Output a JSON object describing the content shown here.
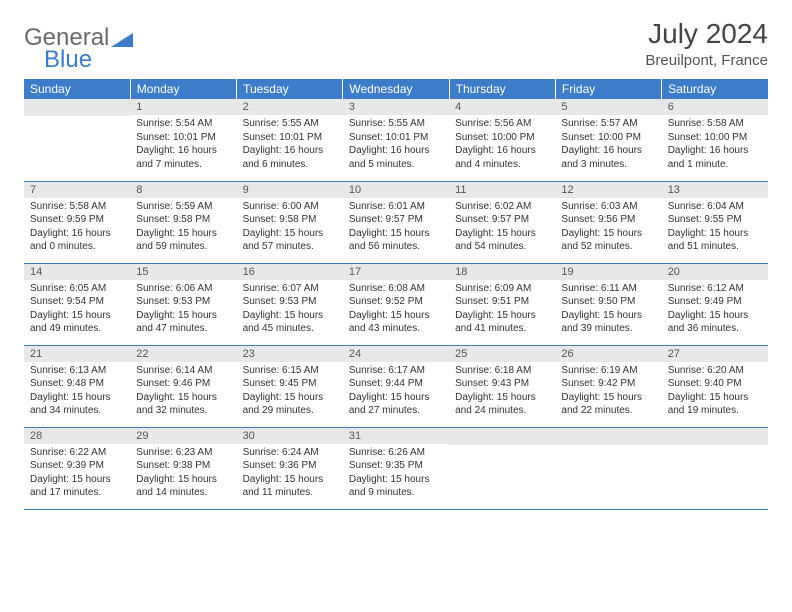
{
  "logo": {
    "part1": "General",
    "part2": "Blue"
  },
  "title": "July 2024",
  "location": "Breuilpont, France",
  "colors": {
    "header_bg": "#3d7cc9",
    "header_fg": "#ffffff",
    "daynum_bg": "#e8e8e8",
    "border": "#3d7cc9",
    "text": "#333333"
  },
  "weekdays": [
    "Sunday",
    "Monday",
    "Tuesday",
    "Wednesday",
    "Thursday",
    "Friday",
    "Saturday"
  ],
  "weeks": [
    [
      {
        "n": "",
        "sr": "",
        "ss": "",
        "dl1": "",
        "dl2": ""
      },
      {
        "n": "1",
        "sr": "Sunrise: 5:54 AM",
        "ss": "Sunset: 10:01 PM",
        "dl1": "Daylight: 16 hours",
        "dl2": "and 7 minutes."
      },
      {
        "n": "2",
        "sr": "Sunrise: 5:55 AM",
        "ss": "Sunset: 10:01 PM",
        "dl1": "Daylight: 16 hours",
        "dl2": "and 6 minutes."
      },
      {
        "n": "3",
        "sr": "Sunrise: 5:55 AM",
        "ss": "Sunset: 10:01 PM",
        "dl1": "Daylight: 16 hours",
        "dl2": "and 5 minutes."
      },
      {
        "n": "4",
        "sr": "Sunrise: 5:56 AM",
        "ss": "Sunset: 10:00 PM",
        "dl1": "Daylight: 16 hours",
        "dl2": "and 4 minutes."
      },
      {
        "n": "5",
        "sr": "Sunrise: 5:57 AM",
        "ss": "Sunset: 10:00 PM",
        "dl1": "Daylight: 16 hours",
        "dl2": "and 3 minutes."
      },
      {
        "n": "6",
        "sr": "Sunrise: 5:58 AM",
        "ss": "Sunset: 10:00 PM",
        "dl1": "Daylight: 16 hours",
        "dl2": "and 1 minute."
      }
    ],
    [
      {
        "n": "7",
        "sr": "Sunrise: 5:58 AM",
        "ss": "Sunset: 9:59 PM",
        "dl1": "Daylight: 16 hours",
        "dl2": "and 0 minutes."
      },
      {
        "n": "8",
        "sr": "Sunrise: 5:59 AM",
        "ss": "Sunset: 9:58 PM",
        "dl1": "Daylight: 15 hours",
        "dl2": "and 59 minutes."
      },
      {
        "n": "9",
        "sr": "Sunrise: 6:00 AM",
        "ss": "Sunset: 9:58 PM",
        "dl1": "Daylight: 15 hours",
        "dl2": "and 57 minutes."
      },
      {
        "n": "10",
        "sr": "Sunrise: 6:01 AM",
        "ss": "Sunset: 9:57 PM",
        "dl1": "Daylight: 15 hours",
        "dl2": "and 56 minutes."
      },
      {
        "n": "11",
        "sr": "Sunrise: 6:02 AM",
        "ss": "Sunset: 9:57 PM",
        "dl1": "Daylight: 15 hours",
        "dl2": "and 54 minutes."
      },
      {
        "n": "12",
        "sr": "Sunrise: 6:03 AM",
        "ss": "Sunset: 9:56 PM",
        "dl1": "Daylight: 15 hours",
        "dl2": "and 52 minutes."
      },
      {
        "n": "13",
        "sr": "Sunrise: 6:04 AM",
        "ss": "Sunset: 9:55 PM",
        "dl1": "Daylight: 15 hours",
        "dl2": "and 51 minutes."
      }
    ],
    [
      {
        "n": "14",
        "sr": "Sunrise: 6:05 AM",
        "ss": "Sunset: 9:54 PM",
        "dl1": "Daylight: 15 hours",
        "dl2": "and 49 minutes."
      },
      {
        "n": "15",
        "sr": "Sunrise: 6:06 AM",
        "ss": "Sunset: 9:53 PM",
        "dl1": "Daylight: 15 hours",
        "dl2": "and 47 minutes."
      },
      {
        "n": "16",
        "sr": "Sunrise: 6:07 AM",
        "ss": "Sunset: 9:53 PM",
        "dl1": "Daylight: 15 hours",
        "dl2": "and 45 minutes."
      },
      {
        "n": "17",
        "sr": "Sunrise: 6:08 AM",
        "ss": "Sunset: 9:52 PM",
        "dl1": "Daylight: 15 hours",
        "dl2": "and 43 minutes."
      },
      {
        "n": "18",
        "sr": "Sunrise: 6:09 AM",
        "ss": "Sunset: 9:51 PM",
        "dl1": "Daylight: 15 hours",
        "dl2": "and 41 minutes."
      },
      {
        "n": "19",
        "sr": "Sunrise: 6:11 AM",
        "ss": "Sunset: 9:50 PM",
        "dl1": "Daylight: 15 hours",
        "dl2": "and 39 minutes."
      },
      {
        "n": "20",
        "sr": "Sunrise: 6:12 AM",
        "ss": "Sunset: 9:49 PM",
        "dl1": "Daylight: 15 hours",
        "dl2": "and 36 minutes."
      }
    ],
    [
      {
        "n": "21",
        "sr": "Sunrise: 6:13 AM",
        "ss": "Sunset: 9:48 PM",
        "dl1": "Daylight: 15 hours",
        "dl2": "and 34 minutes."
      },
      {
        "n": "22",
        "sr": "Sunrise: 6:14 AM",
        "ss": "Sunset: 9:46 PM",
        "dl1": "Daylight: 15 hours",
        "dl2": "and 32 minutes."
      },
      {
        "n": "23",
        "sr": "Sunrise: 6:15 AM",
        "ss": "Sunset: 9:45 PM",
        "dl1": "Daylight: 15 hours",
        "dl2": "and 29 minutes."
      },
      {
        "n": "24",
        "sr": "Sunrise: 6:17 AM",
        "ss": "Sunset: 9:44 PM",
        "dl1": "Daylight: 15 hours",
        "dl2": "and 27 minutes."
      },
      {
        "n": "25",
        "sr": "Sunrise: 6:18 AM",
        "ss": "Sunset: 9:43 PM",
        "dl1": "Daylight: 15 hours",
        "dl2": "and 24 minutes."
      },
      {
        "n": "26",
        "sr": "Sunrise: 6:19 AM",
        "ss": "Sunset: 9:42 PM",
        "dl1": "Daylight: 15 hours",
        "dl2": "and 22 minutes."
      },
      {
        "n": "27",
        "sr": "Sunrise: 6:20 AM",
        "ss": "Sunset: 9:40 PM",
        "dl1": "Daylight: 15 hours",
        "dl2": "and 19 minutes."
      }
    ],
    [
      {
        "n": "28",
        "sr": "Sunrise: 6:22 AM",
        "ss": "Sunset: 9:39 PM",
        "dl1": "Daylight: 15 hours",
        "dl2": "and 17 minutes."
      },
      {
        "n": "29",
        "sr": "Sunrise: 6:23 AM",
        "ss": "Sunset: 9:38 PM",
        "dl1": "Daylight: 15 hours",
        "dl2": "and 14 minutes."
      },
      {
        "n": "30",
        "sr": "Sunrise: 6:24 AM",
        "ss": "Sunset: 9:36 PM",
        "dl1": "Daylight: 15 hours",
        "dl2": "and 11 minutes."
      },
      {
        "n": "31",
        "sr": "Sunrise: 6:26 AM",
        "ss": "Sunset: 9:35 PM",
        "dl1": "Daylight: 15 hours",
        "dl2": "and 9 minutes."
      },
      {
        "n": "",
        "sr": "",
        "ss": "",
        "dl1": "",
        "dl2": ""
      },
      {
        "n": "",
        "sr": "",
        "ss": "",
        "dl1": "",
        "dl2": ""
      },
      {
        "n": "",
        "sr": "",
        "ss": "",
        "dl1": "",
        "dl2": ""
      }
    ]
  ]
}
